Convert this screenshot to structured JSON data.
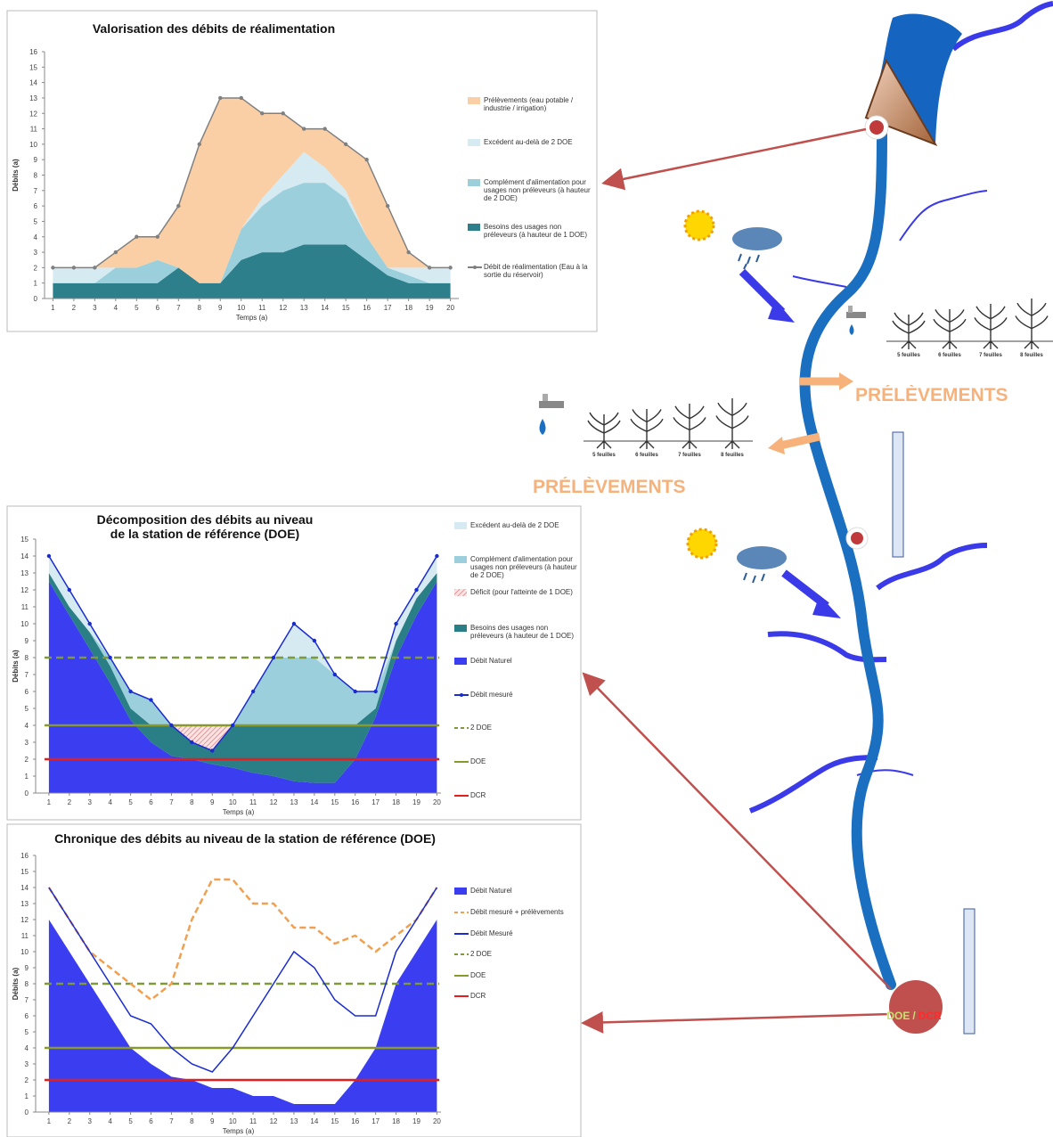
{
  "chart_data": [
    {
      "type": "area",
      "title": "Valorisation des débits de réalimentation",
      "ylabel": "Débits (a)",
      "xlabel": "Temps (a)",
      "x": [
        1,
        2,
        3,
        4,
        5,
        6,
        7,
        8,
        9,
        10,
        11,
        12,
        13,
        14,
        15,
        16,
        17,
        18,
        19,
        20
      ],
      "xlim": [
        0.6,
        20.4
      ],
      "ylim": [
        0,
        16
      ],
      "yticks": [
        0,
        1,
        2,
        3,
        4,
        5,
        6,
        7,
        8,
        9,
        10,
        11,
        12,
        13,
        14,
        15,
        16
      ],
      "grid": false,
      "series": [
        {
          "name": "Besoins des usages non préleveurs (à hauteur de 1 DOE)",
          "style": "area",
          "color": "#2d7f8c",
          "values": [
            1,
            1,
            1,
            1,
            1,
            1,
            2,
            1,
            1,
            2.5,
            3,
            3,
            3.5,
            3.5,
            3.5,
            2.5,
            1.5,
            1,
            1,
            1
          ]
        },
        {
          "name": "Complément d'alimentation pour usages non préleveurs (à hauteur de 2 DOE)",
          "style": "area",
          "color": "#9ccfdc",
          "values": [
            0,
            0,
            0,
            1,
            1,
            1.5,
            0,
            0,
            0,
            2,
            3,
            4,
            4,
            4,
            3,
            1.5,
            0.5,
            0.5,
            0,
            0
          ]
        },
        {
          "name": "Excédent au-delà de 2 DOE",
          "style": "area",
          "color": "#d6eaf2",
          "values": [
            1,
            1,
            1,
            0,
            0,
            0,
            0,
            0,
            0,
            0,
            0.5,
            1,
            2,
            1,
            0.5,
            0,
            0,
            0.5,
            1,
            1
          ]
        },
        {
          "name": "Prélèvements (eau potable / industrie / irrigation)",
          "style": "area",
          "color": "#fbcfa6",
          "values": [
            0,
            0,
            0,
            1,
            2,
            1.5,
            4,
            9,
            12,
            8.5,
            5.5,
            4,
            1.5,
            2.5,
            3,
            5,
            4,
            1,
            0,
            0
          ]
        },
        {
          "name": "Débit de réalimentation (Eau à la sortie du réservoir)",
          "style": "line",
          "color": "#808080",
          "markers": true,
          "values": [
            2,
            2,
            2,
            3,
            4,
            4,
            6,
            10,
            13,
            13,
            12,
            12,
            11,
            11,
            10,
            9,
            6,
            3,
            2,
            2
          ]
        }
      ]
    },
    {
      "type": "area",
      "title": "Décomposition des débits au niveau de la station de référence (DOE)",
      "ylabel": "Débits (a)",
      "xlabel": "Temps (a)",
      "x": [
        1,
        2,
        3,
        4,
        5,
        6,
        7,
        8,
        9,
        10,
        11,
        12,
        13,
        14,
        15,
        16,
        17,
        18,
        19,
        20
      ],
      "xlim": [
        0.35,
        20.2
      ],
      "ylim": [
        0,
        15
      ],
      "yticks": [
        0,
        1,
        2,
        3,
        4,
        5,
        6,
        7,
        8,
        9,
        10,
        11,
        12,
        13,
        14,
        15
      ],
      "grid": false,
      "series": [
        {
          "name": "Débit Naturel",
          "style": "area",
          "color": "#3b3df0",
          "values": [
            12.5,
            10.5,
            8.5,
            6.5,
            4.3,
            3,
            2.2,
            2,
            1.7,
            1.5,
            1.2,
            1,
            0.7,
            0.6,
            0.6,
            2,
            4.5,
            8,
            10.5,
            12.5
          ]
        },
        {
          "name": "Besoins des usages non préleveurs (à hauteur de 1 DOE)",
          "style": "area",
          "color": "#2a7f86",
          "values": [
            0.5,
            0.5,
            1,
            1,
            0.7,
            1,
            1.8,
            1,
            0.8,
            2.5,
            2.8,
            3,
            3.3,
            3.4,
            3.4,
            2,
            0.5,
            1,
            1,
            0.5
          ]
        },
        {
          "name": "Déficit (pour l'atteinte de 1 DOE)",
          "style": "area",
          "color": "#f2b8b8",
          "hatched": true,
          "values": [
            0,
            0,
            0,
            0,
            0,
            0,
            0,
            1,
            1.5,
            0,
            0,
            0,
            0,
            0,
            0,
            0,
            0,
            0,
            0,
            0
          ]
        },
        {
          "name": "Complément d'alimentation pour usages non préleveurs (à hauteur de 2 DOE)",
          "style": "area",
          "color": "#9ccfdc",
          "values": [
            0,
            0,
            0,
            0.5,
            1,
            1.5,
            0,
            0,
            0,
            0,
            2,
            4,
            4,
            4,
            3,
            2,
            1,
            0,
            0,
            0
          ]
        },
        {
          "name": "Excédent au-delà de 2 DOE",
          "style": "area",
          "color": "#d6eaf2",
          "values": [
            1,
            1,
            0.5,
            0,
            0,
            0,
            0,
            0,
            0,
            0,
            0,
            0,
            2,
            1,
            0,
            0,
            0,
            1,
            0.5,
            1
          ]
        },
        {
          "name": "Débit mesuré",
          "style": "line",
          "color": "#1a2bd0",
          "markers": true,
          "values": [
            14,
            12,
            10,
            8,
            6,
            5.5,
            4,
            3,
            2.5,
            4,
            6,
            8,
            10,
            9,
            7,
            6,
            6,
            10,
            12,
            14
          ]
        }
      ],
      "reference_lines": [
        {
          "name": "2 DOE",
          "value": 8,
          "color": "#7f9a3a",
          "dash": true
        },
        {
          "name": "DOE",
          "value": 4,
          "color": "#8a9a2a"
        },
        {
          "name": "DCR",
          "value": 2,
          "color": "#e02020"
        }
      ]
    },
    {
      "type": "area",
      "title": "Chronique des débits au niveau de la station de référence (DOE)",
      "ylabel": "Débits (a)",
      "xlabel": "Temps (a)",
      "x": [
        1,
        2,
        3,
        4,
        5,
        6,
        7,
        8,
        9,
        10,
        11,
        12,
        13,
        14,
        15,
        16,
        17,
        18,
        19,
        20
      ],
      "xlim": [
        0.35,
        20.2
      ],
      "ylim": [
        0,
        16
      ],
      "yticks": [
        0,
        1,
        2,
        3,
        4,
        5,
        6,
        7,
        8,
        9,
        10,
        11,
        12,
        13,
        14,
        15,
        16
      ],
      "grid": false,
      "series": [
        {
          "name": "Débit Naturel",
          "style": "area",
          "color": "#3b3df0",
          "values": [
            12,
            10,
            8,
            6,
            4,
            3,
            2.2,
            2,
            1.5,
            1.5,
            1,
            1,
            0.5,
            0.5,
            0.5,
            2,
            4,
            8,
            10,
            12
          ]
        },
        {
          "name": "Débit mesuré + prélèvements",
          "style": "line",
          "color": "#f0a050",
          "dash": true,
          "values": [
            14,
            12,
            10,
            9,
            8,
            7,
            8,
            12,
            14.5,
            14.5,
            13,
            13,
            11.5,
            11.5,
            10.5,
            11,
            10,
            11,
            12,
            14
          ]
        },
        {
          "name": "Débit Mesuré",
          "style": "line",
          "color": "#1a2bd0",
          "values": [
            14,
            12,
            10,
            8,
            6,
            5.5,
            4,
            3,
            2.5,
            4,
            6,
            8,
            10,
            9,
            7,
            6,
            6,
            10,
            12,
            14
          ]
        }
      ],
      "reference_lines": [
        {
          "name": "2 DOE",
          "value": 8,
          "color": "#7f9a3a",
          "dash": true
        },
        {
          "name": "DOE",
          "value": 4,
          "color": "#8a9a2a"
        },
        {
          "name": "DCR",
          "value": 2,
          "color": "#e02020"
        }
      ]
    }
  ],
  "diagram": {
    "prelevements": [
      "PRÉLÈVEMENTS",
      "PRÉLÈVEMENTS"
    ],
    "plants": [
      [
        "5 feuilles",
        "6 feuilles",
        "7 feuilles",
        "8 feuilles"
      ],
      [
        "5 feuilles",
        "6 feuilles",
        "7 feuilles",
        "8 feuilles"
      ]
    ],
    "station": {
      "doe": "DOE",
      "sep": "/",
      "dcr": "DCR"
    }
  }
}
